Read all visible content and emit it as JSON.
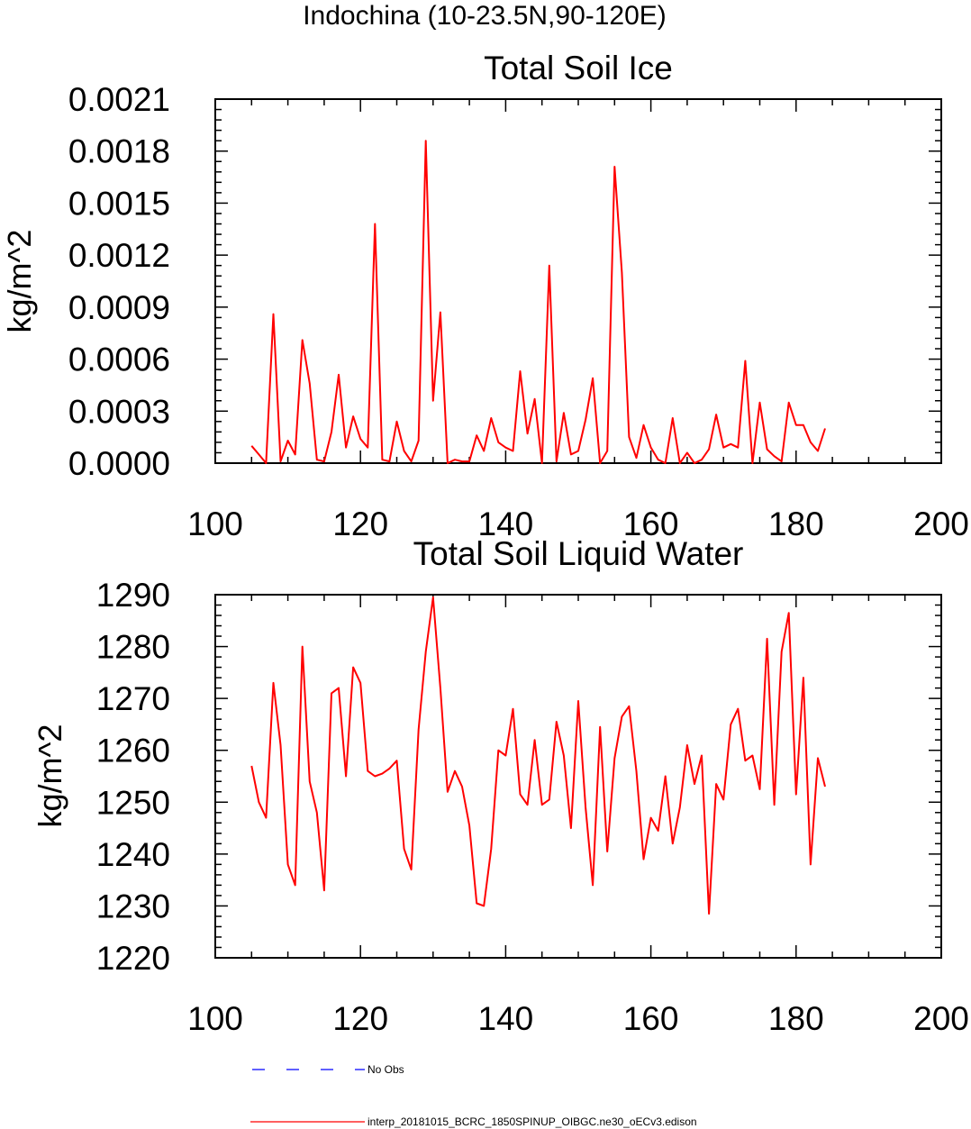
{
  "header": {
    "region": "Indochina (10-23.5N,90-120E)"
  },
  "chart_data": [
    {
      "type": "line",
      "title": "Total Soil Ice",
      "xlabel": "",
      "ylabel": "kg/m^2",
      "xlim": [
        100,
        200
      ],
      "ylim": [
        0,
        0.0021
      ],
      "xticks": [
        100,
        120,
        140,
        160,
        180,
        200
      ],
      "xtick_labels": [
        "100",
        "120",
        "140",
        "160",
        "180",
        "200"
      ],
      "yticks": [
        0,
        0.0003,
        0.0006,
        0.0009,
        0.0012,
        0.0015,
        0.0018,
        0.0021
      ],
      "ytick_labels": [
        "0.0000",
        "0.0003",
        "0.0006",
        "0.0009",
        "0.0012",
        "0.0015",
        "0.0018",
        "0.0021"
      ],
      "grid": false,
      "series": [
        {
          "name": "interp_20181015_BCRC_1850SPINUP_OIBGC.ne30_oECv3.edison",
          "color": "#ff0000",
          "x": [
            105,
            106,
            107,
            108,
            109,
            110,
            111,
            112,
            113,
            114,
            115,
            116,
            117,
            118,
            119,
            120,
            121,
            122,
            123,
            124,
            125,
            126,
            127,
            128,
            129,
            130,
            131,
            132,
            133,
            134,
            135,
            136,
            137,
            138,
            139,
            140,
            141,
            142,
            143,
            144,
            145,
            146,
            147,
            148,
            149,
            150,
            151,
            152,
            153,
            154,
            155,
            156,
            157,
            158,
            159,
            160,
            161,
            162,
            163,
            164,
            165,
            166,
            167,
            168,
            169,
            170,
            171,
            172,
            173,
            174,
            175,
            176,
            177,
            178,
            179,
            180,
            181,
            182,
            183,
            184
          ],
          "values": [
            0.0001,
            5e-05,
            0.0,
            0.00086,
            1e-05,
            0.00013,
            5e-05,
            0.00071,
            0.00046,
            2e-05,
            1e-05,
            0.00018,
            0.00051,
            9e-05,
            0.00027,
            0.00014,
            9e-05,
            0.00138,
            2e-05,
            1e-05,
            0.00024,
            7e-05,
            1e-05,
            0.00013,
            0.00186,
            0.00036,
            0.00087,
            0.0,
            2e-05,
            1e-05,
            1e-05,
            0.00016,
            7e-05,
            0.00026,
            0.00012,
            9e-05,
            7e-05,
            0.00053,
            0.00017,
            0.00037,
            0.0,
            0.00114,
            1e-05,
            0.00029,
            5e-05,
            7e-05,
            0.00025,
            0.00049,
            0.0,
            7e-05,
            0.00171,
            0.0011,
            0.00015,
            3e-05,
            0.00022,
            9e-05,
            2e-05,
            0.0,
            0.00026,
            0.0,
            6e-05,
            0.0,
            2e-05,
            8e-05,
            0.00028,
            9e-05,
            0.00011,
            9e-05,
            0.00059,
            0.0,
            0.00035,
            8e-05,
            4e-05,
            1e-05,
            0.00035,
            0.00022,
            0.00022,
            0.00012,
            7e-05,
            0.0002
          ]
        }
      ]
    },
    {
      "type": "line",
      "title": "Total Soil Liquid Water",
      "xlabel": "",
      "ylabel": "kg/m^2",
      "xlim": [
        100,
        200
      ],
      "ylim": [
        1220,
        1290
      ],
      "xticks": [
        100,
        120,
        140,
        160,
        180,
        200
      ],
      "xtick_labels": [
        "100",
        "120",
        "140",
        "160",
        "180",
        "200"
      ],
      "yticks": [
        1220,
        1230,
        1240,
        1250,
        1260,
        1270,
        1280,
        1290
      ],
      "ytick_labels": [
        "1220",
        "1230",
        "1240",
        "1250",
        "1260",
        "1270",
        "1280",
        "1290"
      ],
      "grid": false,
      "series": [
        {
          "name": "interp_20181015_BCRC_1850SPINUP_OIBGC.ne30_oECv3.edison",
          "color": "#ff0000",
          "x": [
            105,
            106,
            107,
            108,
            109,
            110,
            111,
            112,
            113,
            114,
            115,
            116,
            117,
            118,
            119,
            120,
            121,
            122,
            123,
            124,
            125,
            126,
            127,
            128,
            129,
            130,
            131,
            132,
            133,
            134,
            135,
            136,
            137,
            138,
            139,
            140,
            141,
            142,
            143,
            144,
            145,
            146,
            147,
            148,
            149,
            150,
            151,
            152,
            153,
            154,
            155,
            156,
            157,
            158,
            159,
            160,
            161,
            162,
            163,
            164,
            165,
            166,
            167,
            168,
            169,
            170,
            171,
            172,
            173,
            174,
            175,
            176,
            177,
            178,
            179,
            180,
            181,
            182,
            183,
            184
          ],
          "values": [
            1257,
            1250,
            1247,
            1273,
            1261,
            1238,
            1234,
            1280,
            1254,
            1248,
            1233,
            1271,
            1272,
            1255,
            1276,
            1273,
            1256,
            1255,
            1255.5,
            1256.5,
            1258,
            1241,
            1237,
            1264,
            1279,
            1289.5,
            1272,
            1252,
            1256,
            1253,
            1245.5,
            1230.5,
            1230,
            1241,
            1260,
            1259,
            1268,
            1251.5,
            1249.5,
            1262,
            1249.5,
            1250.5,
            1265.5,
            1259,
            1245,
            1269.5,
            1249,
            1234,
            1264.5,
            1240.5,
            1258.5,
            1266.5,
            1268.5,
            1256,
            1239,
            1247,
            1244.5,
            1255,
            1242,
            1249,
            1261,
            1253.5,
            1259,
            1228.5,
            1253.5,
            1250.5,
            1265,
            1268,
            1258,
            1259,
            1252.5,
            1281.5,
            1249.5,
            1279,
            1286.5,
            1251.5,
            1274,
            1238,
            1258.5,
            1253
          ]
        }
      ]
    }
  ],
  "legend": {
    "placement": "bottom",
    "items": [
      {
        "label": "No Obs",
        "color": "#0000ff",
        "dash": "dashed"
      },
      {
        "label": "interp_20181015_BCRC_1850SPINUP_OIBGC.ne30_oECv3.edison",
        "color": "#ff0000",
        "dash": "solid"
      }
    ]
  }
}
